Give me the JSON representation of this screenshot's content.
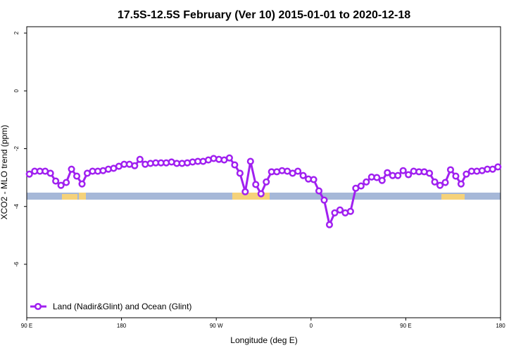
{
  "chart_data": {
    "type": "line",
    "title": "17.5S-12.5S February (Ver 10)   2015-01-01 to 2020-12-18",
    "xlabel": "Longitude (deg E)",
    "ylabel": "XCO2 - MLO trend (ppm)",
    "x": [
      92.5,
      97.5,
      102.5,
      107.5,
      112.5,
      117.5,
      122.5,
      127.5,
      132.5,
      137.5,
      142.5,
      147.5,
      152.5,
      157.5,
      162.5,
      167.5,
      172.5,
      177.5,
      182.5,
      187.5,
      192.5,
      197.5,
      202.5,
      207.5,
      212.5,
      217.5,
      222.5,
      227.5,
      232.5,
      237.5,
      242.5,
      247.5,
      252.5,
      257.5,
      262.5,
      267.5,
      272.5,
      277.5,
      282.5,
      287.5,
      292.5,
      297.5,
      302.5,
      307.5,
      312.5,
      317.5,
      322.5,
      327.5,
      332.5,
      337.5,
      342.5,
      347.5,
      352.5,
      357.5,
      362.5,
      367.5,
      372.5,
      377.5,
      382.5,
      387.5,
      392.5,
      397.5,
      402.5,
      407.5,
      412.5,
      417.5,
      422.5,
      427.5,
      432.5,
      437.5,
      442.5,
      447.5,
      452.5,
      457.5,
      462.5,
      467.5,
      472.5,
      477.5,
      482.5,
      487.5,
      492.5,
      497.5,
      502.5,
      507.5,
      512.5,
      517.5,
      522.5,
      527.5,
      532.5,
      537.5
    ],
    "series": [
      {
        "name": "Land (Nadir&Glint) and Ocean (Glint)",
        "color": "#a020f0",
        "values": [
          -2.88,
          -2.78,
          -2.78,
          -2.78,
          -2.85,
          -3.12,
          -3.27,
          -3.17,
          -2.71,
          -2.95,
          -3.22,
          -2.85,
          -2.78,
          -2.78,
          -2.76,
          -2.71,
          -2.68,
          -2.61,
          -2.54,
          -2.54,
          -2.59,
          -2.37,
          -2.54,
          -2.51,
          -2.49,
          -2.49,
          -2.49,
          -2.46,
          -2.51,
          -2.51,
          -2.49,
          -2.46,
          -2.44,
          -2.44,
          -2.39,
          -2.34,
          -2.37,
          -2.39,
          -2.32,
          -2.56,
          -2.85,
          -3.49,
          -2.44,
          -3.24,
          -3.56,
          -3.15,
          -2.8,
          -2.8,
          -2.76,
          -2.78,
          -2.85,
          -2.78,
          -2.93,
          -3.05,
          -3.07,
          -3.46,
          -3.78,
          -4.63,
          -4.22,
          -4.12,
          -4.22,
          -4.17,
          -3.37,
          -3.29,
          -3.15,
          -2.98,
          -3.0,
          -3.1,
          -2.83,
          -2.93,
          -2.93,
          -2.76,
          -2.9,
          -2.78,
          -2.8,
          -2.8,
          -2.85,
          -3.15,
          -3.27,
          -3.17,
          -2.73,
          -2.95,
          -3.22,
          -2.88,
          -2.78,
          -2.78,
          -2.76,
          -2.71,
          -2.71,
          -2.63
        ]
      }
    ],
    "xlim": [
      90,
      540
    ],
    "xticks": [
      {
        "value": 90,
        "label": "90 E"
      },
      {
        "value": 180,
        "label": "180"
      },
      {
        "value": 270,
        "label": "90 W"
      },
      {
        "value": 360,
        "label": "0"
      },
      {
        "value": 450,
        "label": "90 E"
      },
      {
        "value": 540,
        "label": "180"
      }
    ],
    "ylim": [
      -7.85,
      2.22
    ],
    "yticks": [
      -6,
      -4,
      -2,
      0,
      2
    ],
    "legend": "bottom-left"
  }
}
